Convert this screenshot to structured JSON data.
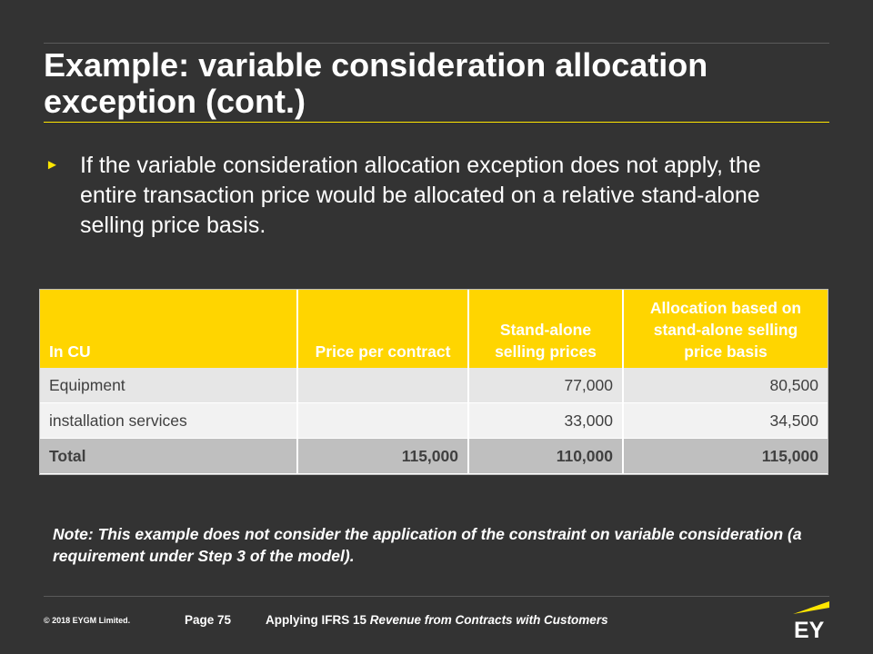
{
  "slide": {
    "title": "Example: variable consideration allocation exception (cont.)",
    "bullet_marker": "►",
    "bullet_text": "If the variable consideration allocation exception does not apply, the entire transaction price would be allocated on a relative stand-alone selling price basis."
  },
  "table": {
    "headers": {
      "label": "In CU",
      "price_per_contract": "Price per contract",
      "standalone_prices": "Stand-alone selling prices",
      "allocation": "Allocation based on stand-alone selling price basis"
    },
    "rows": [
      {
        "label": "Equipment",
        "price_per_contract": "",
        "standalone_prices": "77,000",
        "allocation": "80,500"
      },
      {
        "label": "installation services",
        "price_per_contract": "",
        "standalone_prices": "33,000",
        "allocation": "34,500"
      }
    ],
    "total": {
      "label": "Total",
      "price_per_contract": "115,000",
      "standalone_prices": "110,000",
      "allocation": "115,000"
    }
  },
  "note": "Note: This example does not consider the application of the constraint on variable consideration (a requirement under Step 3 of the model).",
  "footer": {
    "copyright": "© 2018 EYGM Limited.",
    "page": "Page 75",
    "doc_title_prefix": "Applying IFRS 15",
    "doc_title_italic": "Revenue from Contracts with Customers",
    "logo_text": "EY"
  },
  "colors": {
    "background": "#333333",
    "accent_yellow": "#ffe600",
    "header_fill": "#ffd500"
  }
}
